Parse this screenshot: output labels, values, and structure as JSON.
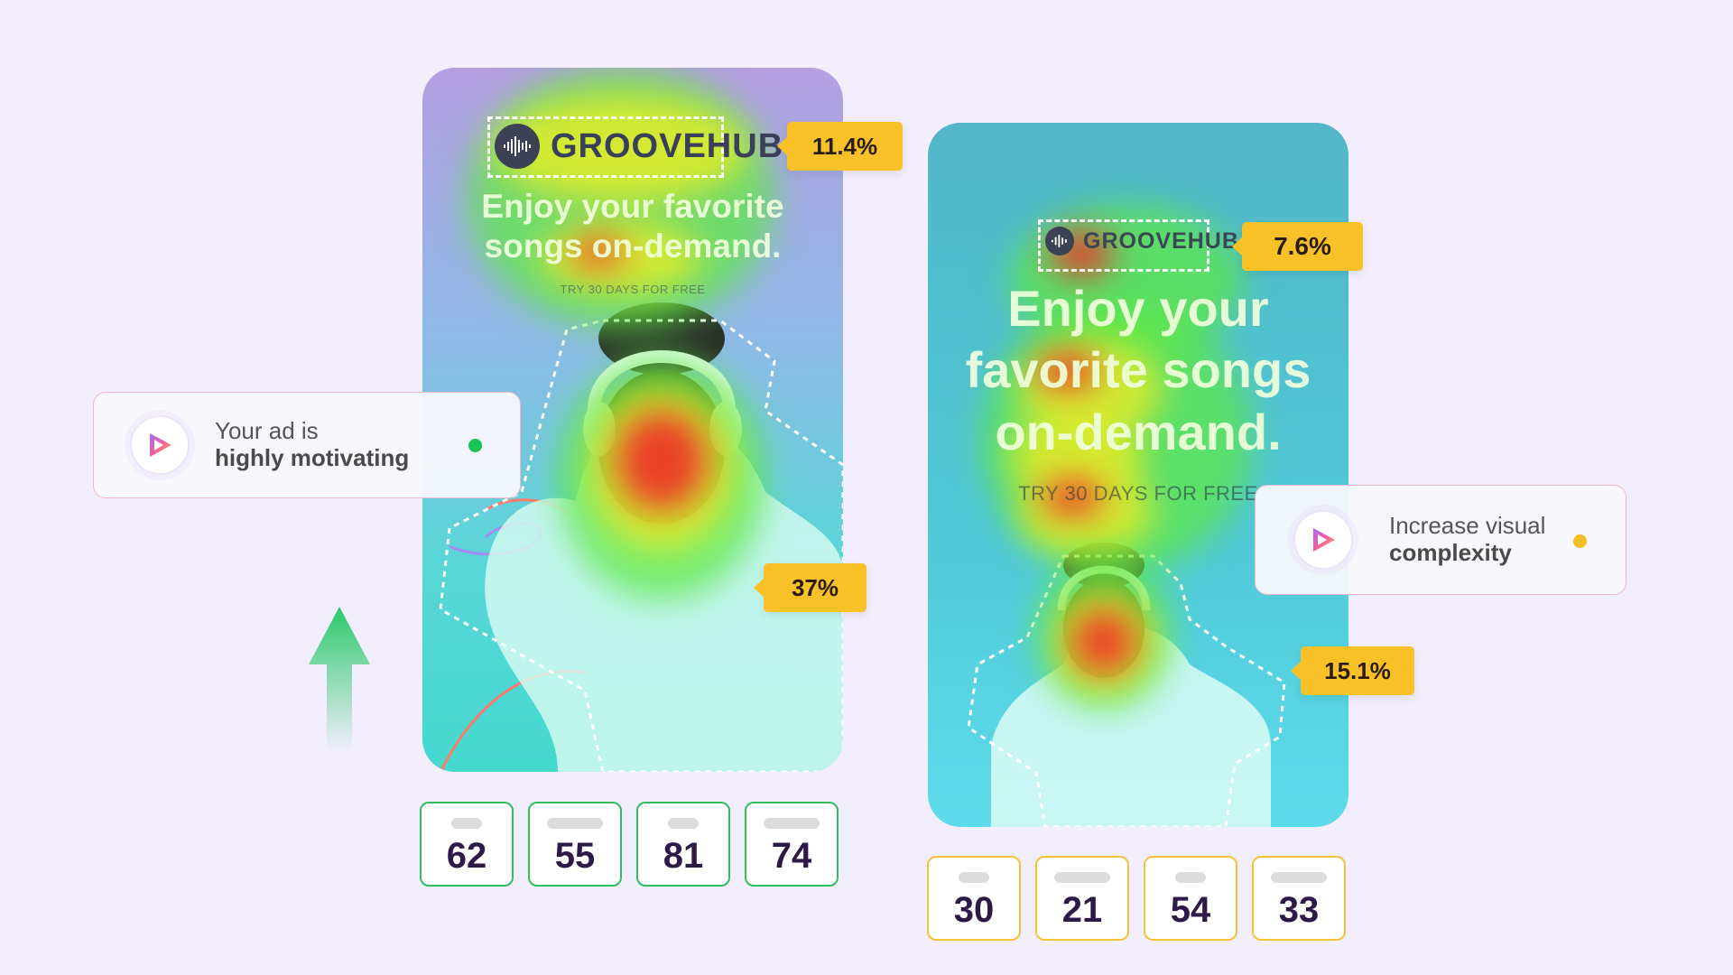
{
  "ad_a": {
    "brand": "GROOVEHUB",
    "headline_line1": "Enjoy your favorite",
    "headline_line2": "songs on-demand.",
    "cta": "TRY 30 DAYS FOR FREE",
    "logo_attention": "11.4%",
    "subject_attention": "37%",
    "scores": [
      "62",
      "55",
      "81",
      "74"
    ]
  },
  "ad_b": {
    "brand": "GROOVEHUB",
    "headline_line1": "Enjoy your",
    "headline_line2": "favorite songs",
    "headline_line3": "on-demand.",
    "cta": "TRY 30 DAYS FOR FREE",
    "logo_attention": "7.6%",
    "subject_attention": "15.1%",
    "scores": [
      "30",
      "21",
      "54",
      "33"
    ]
  },
  "insight_a": {
    "line1": "Your ad is",
    "line2": "highly motivating",
    "status_color": "#18c253"
  },
  "insight_b": {
    "line1": "Increase visual",
    "line2": "complexity",
    "status_color": "#f6be25"
  },
  "colors": {
    "positive_border": "#2fc05e",
    "warning_border": "#f5c234",
    "tag_bg": "#f9c128"
  },
  "icons": {
    "trend": "up-arrow-icon",
    "insight": "play-logo-icon",
    "brand": "soundwave-icon"
  }
}
